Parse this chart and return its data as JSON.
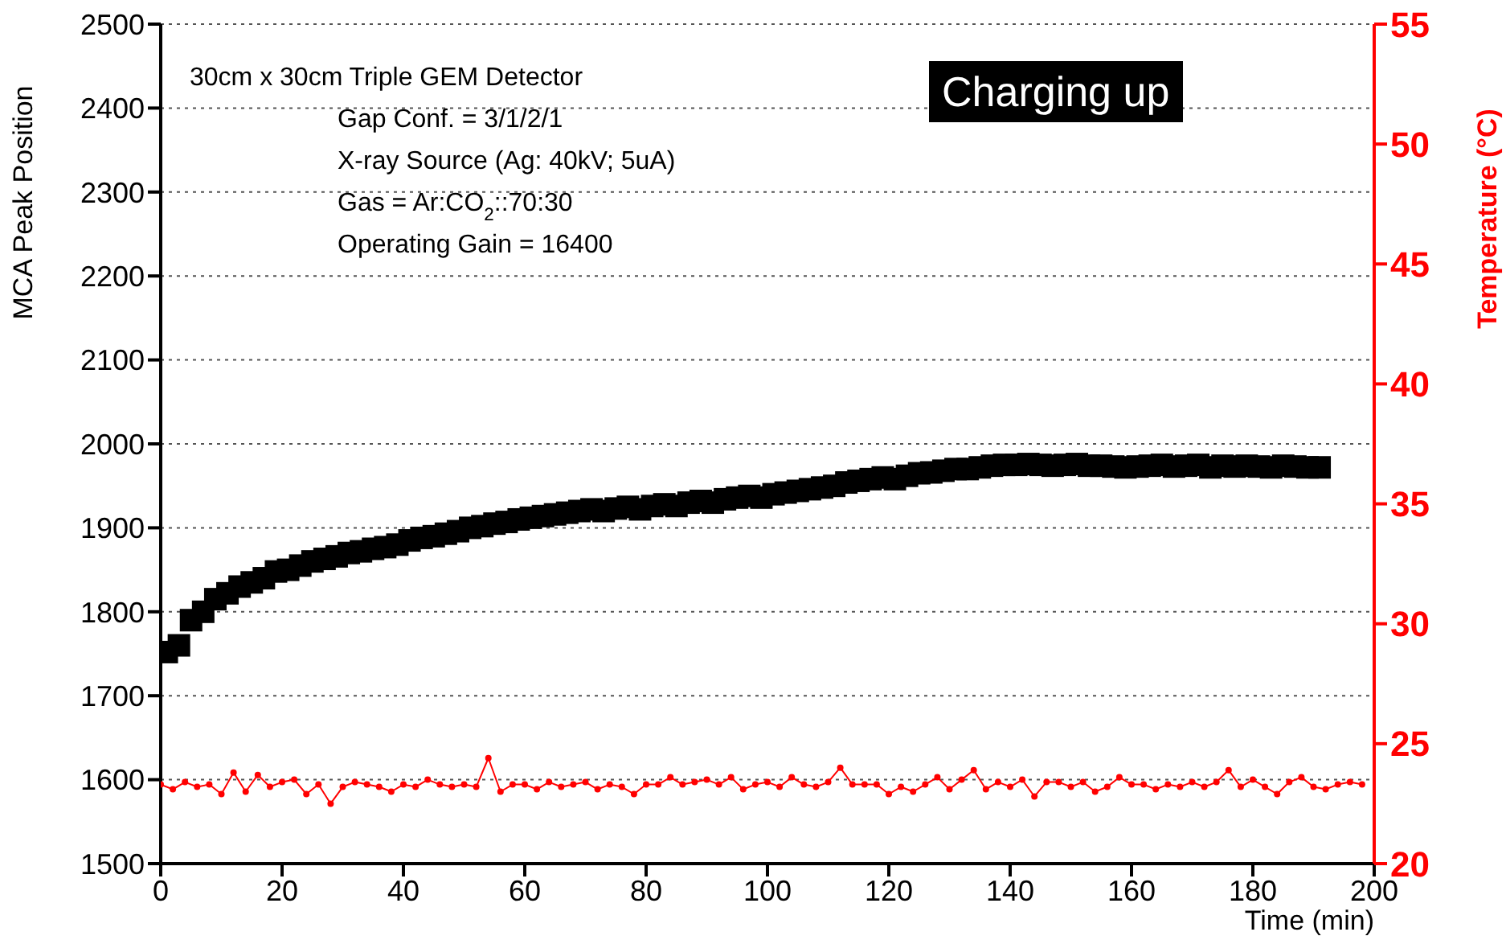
{
  "chart_data": {
    "type": "scatter",
    "xlabel": "Time (min)",
    "ylabel": "MCA Peak Position",
    "y2label": "Temperature (°C)",
    "annotations": [
      "30cm x 30cm Triple GEM Detector",
      "Gap Conf. = 3/1/2/1",
      "X-ray Source (Ag: 40kV; 5uA)",
      "Gas = Ar:CO$_{2}$::70:30",
      "Operating Gain = 16400",
      "Charging up"
    ],
    "xlim": [
      0,
      200
    ],
    "xticks": [
      0,
      20,
      40,
      60,
      80,
      100,
      120,
      140,
      160,
      180,
      200
    ],
    "ylim": [
      1500,
      2500
    ],
    "yticks": [
      1500,
      1600,
      1700,
      1800,
      1900,
      2000,
      2100,
      2200,
      2300,
      2400,
      2500
    ],
    "y2lim": [
      20,
      55
    ],
    "y2ticks": [
      20,
      25,
      30,
      35,
      40,
      45,
      50,
      55
    ],
    "grid": true,
    "legend": false,
    "series": [
      {
        "marker": "square",
        "color": "#000000",
        "x": [
          1,
          3,
          5,
          7,
          9,
          11,
          13,
          15,
          17,
          19,
          21,
          23,
          25,
          27,
          29,
          31,
          33,
          35,
          37,
          39,
          41,
          43,
          45,
          47,
          49,
          51,
          53,
          55,
          57,
          59,
          61,
          63,
          65,
          67,
          69,
          71,
          73,
          75,
          77,
          79,
          81,
          83,
          85,
          87,
          89,
          91,
          93,
          95,
          97,
          99,
          101,
          103,
          105,
          107,
          109,
          111,
          113,
          115,
          117,
          119,
          121,
          123,
          125,
          127,
          129,
          131,
          133,
          135,
          137,
          139,
          141,
          143,
          145,
          147,
          149,
          151,
          153,
          155,
          157,
          159,
          161,
          163,
          165,
          167,
          169,
          171,
          173,
          175,
          177,
          179,
          181,
          183,
          185,
          187,
          189,
          191
        ],
        "values": [
          1752,
          1760,
          1790,
          1800,
          1815,
          1822,
          1830,
          1835,
          1840,
          1848,
          1850,
          1855,
          1860,
          1863,
          1866,
          1870,
          1872,
          1875,
          1877,
          1880,
          1885,
          1888,
          1890,
          1893,
          1896,
          1900,
          1902,
          1905,
          1907,
          1910,
          1912,
          1914,
          1916,
          1918,
          1920,
          1922,
          1920,
          1923,
          1925,
          1922,
          1926,
          1928,
          1926,
          1930,
          1932,
          1930,
          1934,
          1936,
          1938,
          1936,
          1940,
          1942,
          1944,
          1946,
          1948,
          1950,
          1954,
          1956,
          1958,
          1960,
          1958,
          1962,
          1965,
          1966,
          1968,
          1970,
          1970,
          1972,
          1974,
          1975,
          1975,
          1976,
          1975,
          1974,
          1975,
          1976,
          1974,
          1974,
          1973,
          1972,
          1973,
          1974,
          1975,
          1973,
          1974,
          1975,
          1972,
          1974,
          1973,
          1974,
          1973,
          1972,
          1974,
          1973,
          1972,
          1972
        ]
      },
      {
        "type": "line",
        "axis": "y2",
        "marker": "circle",
        "color": "#ff0000",
        "x": [
          0,
          2,
          4,
          6,
          8,
          10,
          12,
          14,
          16,
          18,
          20,
          22,
          24,
          26,
          28,
          30,
          32,
          34,
          36,
          38,
          40,
          42,
          44,
          46,
          48,
          50,
          52,
          54,
          56,
          58,
          60,
          62,
          64,
          66,
          68,
          70,
          72,
          74,
          76,
          78,
          80,
          82,
          84,
          86,
          88,
          90,
          92,
          94,
          96,
          98,
          100,
          102,
          104,
          106,
          108,
          110,
          112,
          114,
          116,
          118,
          120,
          122,
          124,
          126,
          128,
          130,
          132,
          134,
          136,
          138,
          140,
          142,
          144,
          146,
          148,
          150,
          152,
          154,
          156,
          158,
          160,
          162,
          164,
          166,
          168,
          170,
          172,
          174,
          176,
          178,
          180,
          182,
          184,
          186,
          188,
          190,
          192,
          194,
          196,
          198
        ],
        "values": [
          23.3,
          23.1,
          23.4,
          23.2,
          23.3,
          22.9,
          23.8,
          23.0,
          23.7,
          23.2,
          23.4,
          23.5,
          22.9,
          23.3,
          22.5,
          23.2,
          23.4,
          23.3,
          23.2,
          23.0,
          23.3,
          23.2,
          23.5,
          23.3,
          23.2,
          23.3,
          23.2,
          24.4,
          23.0,
          23.3,
          23.3,
          23.1,
          23.4,
          23.2,
          23.3,
          23.4,
          23.1,
          23.3,
          23.2,
          22.9,
          23.3,
          23.3,
          23.6,
          23.3,
          23.4,
          23.5,
          23.3,
          23.6,
          23.1,
          23.3,
          23.4,
          23.2,
          23.6,
          23.3,
          23.2,
          23.4,
          24.0,
          23.3,
          23.3,
          23.3,
          22.9,
          23.2,
          23.0,
          23.3,
          23.6,
          23.1,
          23.5,
          23.9,
          23.1,
          23.4,
          23.2,
          23.5,
          22.8,
          23.4,
          23.4,
          23.2,
          23.4,
          23.0,
          23.2,
          23.6,
          23.3,
          23.3,
          23.1,
          23.3,
          23.2,
          23.4,
          23.2,
          23.4,
          23.9,
          23.2,
          23.5,
          23.2,
          22.9,
          23.4,
          23.6,
          23.2,
          23.1,
          23.3,
          23.4,
          23.3
        ]
      }
    ]
  }
}
